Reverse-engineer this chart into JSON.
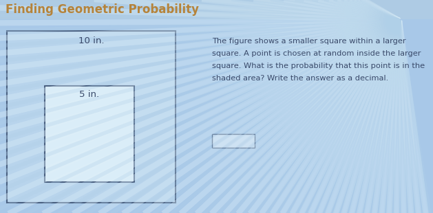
{
  "title": "Finding Geometric Probability",
  "title_color": "#b5833a",
  "title_bg_color": "#b8d0e8",
  "bg_color": "#a8c8e8",
  "outer_square_label": "10 in.",
  "inner_square_label": "5 in.",
  "problem_lines": [
    "The figure shows a smaller square within a larger",
    "square. A point is chosen at random inside the larger",
    "square. What is the probability that this point is in the",
    "shaded area? Write the answer as a decimal."
  ],
  "outer_square_color": "#b8d4ec",
  "inner_square_color": "#dceef8",
  "border_color": "#4a6080",
  "text_color": "#3a4a6a",
  "label_color": "#3a4a6a",
  "answer_box_color": "#c8dcf0",
  "stripe_color": "#c8dff0",
  "header_color": "#b0cce4"
}
